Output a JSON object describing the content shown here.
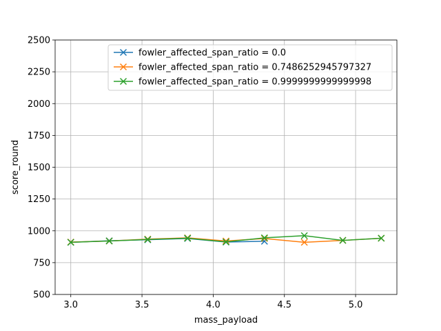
{
  "chart_data": {
    "type": "line",
    "xlabel": "mass_payload",
    "ylabel": "score_round",
    "xlim": [
      2.89,
      5.29
    ],
    "ylim": [
      500,
      2500
    ],
    "xticks": [
      3.0,
      3.5,
      4.0,
      4.5,
      5.0
    ],
    "xtick_labels": [
      "3.0",
      "3.5",
      "4.0",
      "4.5",
      "5.0"
    ],
    "yticks": [
      500,
      750,
      1000,
      1250,
      1500,
      1750,
      2000,
      2250,
      2500
    ],
    "ytick_labels": [
      "500",
      "750",
      "1000",
      "1250",
      "1500",
      "1750",
      "2000",
      "2250",
      "2500"
    ],
    "grid": true,
    "legend_position": "top-center",
    "marker": "x",
    "series": [
      {
        "name": "fowler_affected_span_ratio = 0.0",
        "color": "#1f77b4",
        "x": [
          3.0,
          3.27,
          3.54,
          3.82,
          4.09,
          4.36
        ],
        "y": [
          910,
          922,
          930,
          940,
          912,
          918
        ]
      },
      {
        "name": "fowler_affected_span_ratio = 0.7486252945797327",
        "color": "#ff7f0e",
        "x": [
          3.0,
          3.27,
          3.54,
          3.82,
          4.09,
          4.36,
          4.64,
          4.91,
          5.18
        ],
        "y": [
          912,
          920,
          935,
          945,
          920,
          940,
          910,
          925,
          942
        ]
      },
      {
        "name": "fowler_affected_span_ratio = 0.9999999999999998",
        "color": "#2ca02c",
        "x": [
          3.0,
          3.27,
          3.54,
          3.82,
          4.09,
          4.36,
          4.64,
          4.91,
          5.18
        ],
        "y": [
          910,
          920,
          932,
          942,
          913,
          945,
          962,
          925,
          942
        ]
      }
    ]
  }
}
